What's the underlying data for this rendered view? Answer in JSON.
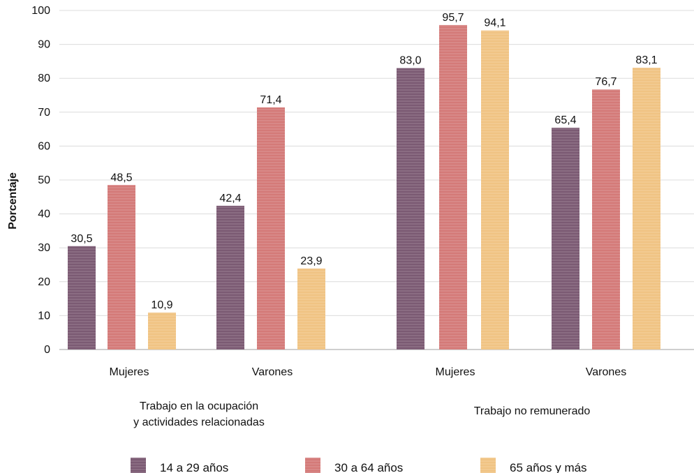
{
  "chart_data": {
    "type": "bar",
    "title": "",
    "ylabel": "Porcentaje",
    "ylim": [
      0,
      100
    ],
    "yticks": [
      0,
      10,
      20,
      30,
      40,
      50,
      60,
      70,
      80,
      90,
      100
    ],
    "grid": true,
    "legend_position": "bottom",
    "groups": [
      {
        "label_lines": [
          "Trabajo en la ocupación",
          "y actividades relacionadas"
        ],
        "categories": [
          "Mujeres",
          "Varones"
        ]
      },
      {
        "label_lines": [
          "Trabajo no remunerado"
        ],
        "categories": [
          "Mujeres",
          "Varones"
        ]
      }
    ],
    "categories": [
      "Mujeres",
      "Varones",
      "Mujeres",
      "Varones"
    ],
    "series": [
      {
        "name": "14 a 29 años",
        "color": "#7b5a73",
        "values": [
          30.5,
          42.4,
          83.0,
          65.4
        ],
        "labels": [
          "30,5",
          "42,4",
          "83,0",
          "65,4"
        ]
      },
      {
        "name": "30 a 64 años",
        "color": "#d47a78",
        "values": [
          48.5,
          71.4,
          95.7,
          76.7
        ],
        "labels": [
          "48,5",
          "71,4",
          "95,7",
          "76,7"
        ]
      },
      {
        "name": "65 años y más",
        "color": "#f0c383",
        "values": [
          10.9,
          23.9,
          94.1,
          83.1
        ],
        "labels": [
          "10,9",
          "23,9",
          "94,1",
          "83,1"
        ]
      }
    ]
  }
}
